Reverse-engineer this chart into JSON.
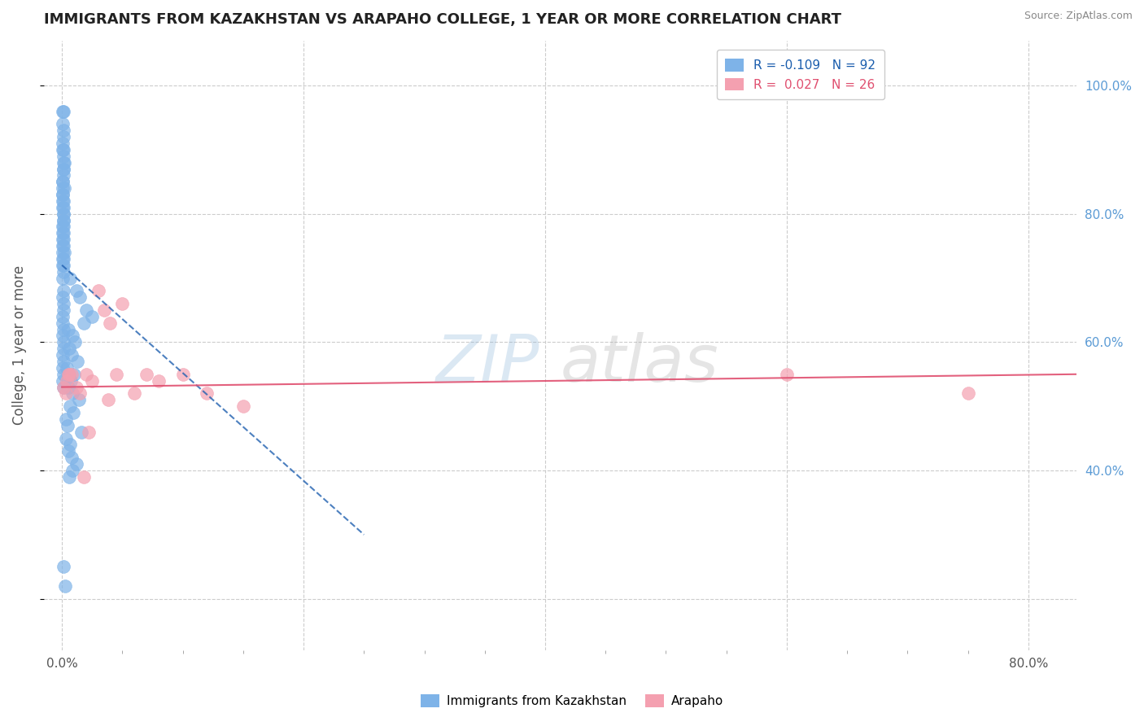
{
  "title": "IMMIGRANTS FROM KAZAKHSTAN VS ARAPAHO COLLEGE, 1 YEAR OR MORE CORRELATION CHART",
  "source": "Source: ZipAtlas.com",
  "xlabel_ticks": [
    "0.0%",
    "",
    "",
    "",
    "80.0%"
  ],
  "xlabel_tick_vals": [
    0.0,
    20.0,
    40.0,
    60.0,
    80.0
  ],
  "ylabel_tick_vals": [
    20.0,
    40.0,
    60.0,
    80.0,
    100.0
  ],
  "ylabel_right_ticks": [
    "40.0%",
    "60.0%",
    "80.0%",
    "100.0%"
  ],
  "ylabel_right_vals": [
    40.0,
    60.0,
    80.0,
    100.0
  ],
  "xlim": [
    -1.5,
    84.0
  ],
  "ylim": [
    12.0,
    107.0
  ],
  "blue_R": -0.109,
  "blue_N": 92,
  "pink_R": 0.027,
  "pink_N": 26,
  "blue_color": "#7EB3E8",
  "pink_color": "#F4A0B0",
  "blue_line_color": "#2060B0",
  "pink_line_color": "#E05070",
  "grid_color": "#CCCCCC",
  "title_color": "#222222",
  "legend_label_blue": "Immigrants from Kazakhstan",
  "legend_label_pink": "Arapaho",
  "blue_x": [
    0.05,
    0.08,
    0.12,
    0.15,
    0.18,
    0.1,
    0.06,
    0.2,
    0.09,
    0.14,
    0.07,
    0.11,
    0.16,
    0.13,
    0.1,
    0.08,
    0.05,
    0.19,
    0.12,
    0.07,
    0.15,
    0.1,
    0.09,
    0.13,
    0.11,
    0.06,
    0.08,
    0.14,
    0.1,
    0.07,
    0.12,
    0.09,
    0.11,
    0.08,
    0.13,
    0.06,
    0.1,
    0.15,
    0.07,
    0.09,
    0.11,
    0.08,
    0.13,
    0.1,
    0.06,
    0.12,
    0.09,
    0.14,
    0.07,
    0.11,
    0.08,
    0.1,
    0.13,
    0.06,
    0.09,
    0.12,
    0.07,
    0.11,
    0.08,
    0.1,
    0.7,
    1.2,
    1.5,
    2.0,
    2.5,
    1.8,
    0.5,
    0.9,
    1.1,
    0.6,
    0.8,
    1.3,
    0.4,
    1.0,
    0.75,
    0.55,
    0.85,
    1.4,
    0.65,
    0.95,
    0.3,
    0.45,
    1.6,
    0.35,
    0.7,
    0.5,
    0.8,
    1.2,
    0.9,
    0.6,
    0.15,
    0.25
  ],
  "blue_y": [
    96.0,
    94.0,
    92.0,
    90.0,
    88.0,
    87.0,
    85.0,
    84.0,
    83.0,
    82.0,
    81.0,
    80.0,
    79.0,
    78.0,
    77.0,
    76.0,
    75.0,
    74.0,
    73.0,
    72.0,
    96.0,
    93.0,
    91.0,
    89.0,
    87.0,
    85.0,
    83.0,
    81.0,
    79.0,
    77.0,
    75.0,
    73.0,
    71.0,
    70.0,
    68.0,
    67.0,
    66.0,
    65.0,
    64.0,
    63.0,
    62.0,
    61.0,
    60.0,
    59.0,
    58.0,
    57.0,
    56.0,
    55.0,
    54.0,
    53.0,
    90.0,
    88.0,
    86.0,
    84.0,
    82.0,
    80.0,
    78.0,
    76.0,
    74.0,
    72.0,
    70.0,
    68.0,
    67.0,
    65.0,
    64.0,
    63.0,
    62.0,
    61.0,
    60.0,
    59.0,
    58.0,
    57.0,
    56.0,
    55.0,
    54.0,
    53.0,
    52.0,
    51.0,
    50.0,
    49.0,
    48.0,
    47.0,
    46.0,
    45.0,
    44.0,
    43.0,
    42.0,
    41.0,
    40.0,
    39.0,
    25.0,
    22.0
  ],
  "pink_x": [
    0.1,
    0.3,
    0.5,
    0.8,
    1.2,
    1.5,
    2.0,
    2.5,
    3.0,
    3.5,
    4.0,
    5.0,
    6.0,
    7.0,
    8.0,
    10.0,
    12.0,
    15.0,
    4.5,
    3.8,
    60.0,
    75.0,
    2.2,
    0.6,
    1.8,
    0.4
  ],
  "pink_y": [
    53.0,
    52.0,
    55.0,
    55.0,
    53.0,
    52.0,
    55.0,
    54.0,
    68.0,
    65.0,
    63.0,
    66.0,
    52.0,
    55.0,
    54.0,
    55.0,
    52.0,
    50.0,
    55.0,
    51.0,
    55.0,
    52.0,
    46.0,
    55.0,
    39.0,
    54.0
  ],
  "blue_trend_x": [
    0.0,
    25.0
  ],
  "blue_trend_y": [
    72.0,
    30.0
  ],
  "pink_trend_x": [
    0.0,
    84.0
  ],
  "pink_trend_y": [
    53.0,
    55.0
  ]
}
